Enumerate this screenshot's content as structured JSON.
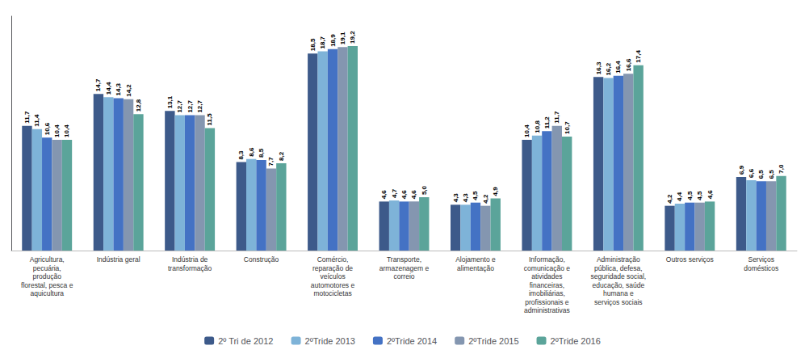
{
  "chart_data": {
    "type": "bar",
    "categories": [
      "Agricultura,\npecuária,\nprodução\nflorestal, pesca e\naquicultura",
      "Indústria geral",
      "Indústria de\ntransformação",
      "Construção",
      "Comércio,\nreparação de\nveículos\nautomotores e\nmotocicletas",
      "Transporte,\narmazenagem e\ncorreio",
      "Alojamento e\nalimentação",
      "Informação,\ncomunicação e\natividades\nfinanceiras,\nimobiliárias,\nprofissionais e\nadministrativas",
      "Administração\npública, defesa,\nseguridade social,\neducação, saúde\nhumana e\nserviços sociais",
      "Outros serviços",
      "Serviços\ndomésticos"
    ],
    "series": [
      {
        "name": "2º Tri de 2012",
        "color": "#3D5A8A",
        "values": [
          11.7,
          14.7,
          13.1,
          8.3,
          18.5,
          4.6,
          4.3,
          10.4,
          16.3,
          4.2,
          6.9
        ],
        "value_labels": [
          "11,7",
          "14,7",
          "13,1",
          "8,3",
          "18,5",
          "4,6",
          "4,3",
          "10,4",
          "16,3",
          "4,2",
          "6,9"
        ]
      },
      {
        "name": "2ºTride 2013",
        "color": "#7EB3D8",
        "values": [
          11.4,
          14.4,
          12.7,
          8.6,
          18.7,
          4.7,
          4.3,
          10.8,
          16.2,
          4.4,
          6.6
        ],
        "value_labels": [
          "11,4",
          "14,4",
          "12,7",
          "8,6",
          "18,7",
          "4,7",
          "4,3",
          "10,8",
          "16,2",
          "4,4",
          "6,6"
        ]
      },
      {
        "name": "2ºTride 2014",
        "color": "#4472C4",
        "values": [
          10.6,
          14.3,
          12.7,
          8.5,
          18.9,
          4.6,
          4.5,
          11.2,
          16.4,
          4.5,
          6.5
        ],
        "value_labels": [
          "10,6",
          "14,3",
          "12,7",
          "8,5",
          "18,9",
          "4,6",
          "4,5",
          "11,2",
          "16,4",
          "4,5",
          "6,5"
        ]
      },
      {
        "name": "2ºTride 2015",
        "color": "#8496B0",
        "values": [
          10.4,
          14.2,
          12.7,
          7.7,
          19.1,
          4.6,
          4.2,
          11.7,
          16.6,
          4.5,
          6.5
        ],
        "value_labels": [
          "10,4",
          "14,2",
          "12,7",
          "7,7",
          "19,1",
          "4,6",
          "4,2",
          "11,7",
          "16,6",
          "4,5",
          "6,5"
        ]
      },
      {
        "name": "2ºTride 2016",
        "color": "#5BA49A",
        "values": [
          10.4,
          12.8,
          11.5,
          8.2,
          19.2,
          5.0,
          4.9,
          10.7,
          17.4,
          4.6,
          7.0
        ],
        "value_labels": [
          "10,4",
          "12,8",
          "11,5",
          "8,2",
          "19,2",
          "5,0",
          "4,9",
          "10,7",
          "17,4",
          "4,6",
          "7,0"
        ]
      }
    ],
    "ylim": [
      0,
      22
    ],
    "grid": false,
    "legend": "bottom",
    "data_labels": true,
    "tick_labels": "x"
  }
}
